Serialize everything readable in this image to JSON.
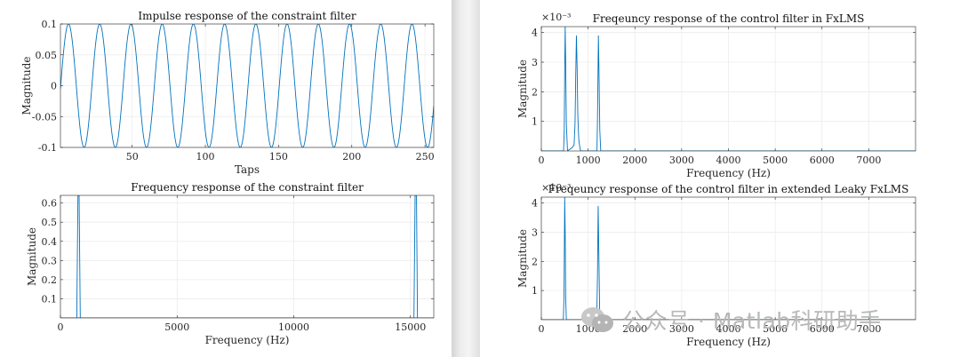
{
  "chart_data": [
    {
      "type": "line",
      "title": "Impulse response of the constraint filter",
      "xlabel": "Taps",
      "ylabel": "Magnitude",
      "xlim": [
        1,
        256
      ],
      "ylim": [
        -0.1,
        0.1
      ],
      "xticks": [
        50,
        100,
        150,
        200,
        250
      ],
      "yticks": [
        -0.1,
        -0.05,
        0,
        0.05,
        0.1
      ],
      "ytick_labels": [
        "-0.1",
        "-0.05",
        "0",
        "0.05",
        "0.1"
      ],
      "grid": true,
      "color": "#0072BD",
      "signal": {
        "form": "cosine",
        "amplitude": 0.1,
        "period_taps": 21.33,
        "phase_peak_tap": 6.5
      }
    },
    {
      "type": "line",
      "title": "Frequency response of the constraint filter",
      "xlabel": "Frequency (Hz)",
      "ylabel": "Magnitude",
      "xlim": [
        0,
        16000
      ],
      "ylim": [
        0,
        0.64
      ],
      "xticks": [
        0,
        5000,
        10000,
        15000
      ],
      "yticks": [
        0.1,
        0.2,
        0.3,
        0.4,
        0.5,
        0.6
      ],
      "grid": true,
      "color": "#0072BD",
      "series": [
        {
          "x": [
            0,
            700,
            750,
            800,
            850,
            16000
          ],
          "y": [
            0,
            0,
            0.64,
            0.64,
            0,
            0
          ]
        },
        {
          "x": [
            0,
            15150,
            15200,
            15260,
            15300,
            16000
          ],
          "y": [
            0,
            0,
            0.64,
            0.64,
            0,
            0
          ]
        }
      ]
    },
    {
      "type": "line",
      "title": "Freqeuncy response of the control filter in FxLMS",
      "xlabel": "Frequency (Hz)",
      "ylabel": "Magnitude",
      "xlim": [
        0,
        8000
      ],
      "ylim": [
        0,
        0.0042
      ],
      "exponent_label": "×10⁻³",
      "xticks": [
        0,
        1000,
        2000,
        3000,
        4000,
        5000,
        6000,
        7000
      ],
      "yticks": [
        0.001,
        0.002,
        0.003,
        0.004
      ],
      "ytick_labels": [
        "1",
        "2",
        "3",
        "4"
      ],
      "grid": true,
      "color": "#0072BD",
      "series": [
        {
          "x": [
            0,
            460,
            475,
            490,
            500,
            510,
            520,
            535,
            560,
            600,
            650,
            700,
            720,
            735,
            750,
            765,
            780,
            800,
            820,
            840,
            880,
            1000,
            1150,
            1190,
            1205,
            1220,
            1235,
            1250,
            1270,
            1300,
            8000
          ],
          "y": [
            0,
            0,
            0,
            0.0007,
            0.0028,
            0.0042,
            0.003,
            0.0009,
            0,
            5e-05,
            0.0001,
            0.0002,
            0.0009,
            0.0025,
            0.0039,
            0.0028,
            0.0012,
            0.0004,
            0.00015,
            0,
            0,
            0,
            0,
            0,
            0.0016,
            0.0039,
            0.0024,
            0.0007,
            0,
            0,
            0
          ]
        }
      ]
    },
    {
      "type": "line",
      "title": "Freqeuncy response of the control filter in extended Leaky FxLMS",
      "xlabel": "Frequency (Hz)",
      "ylabel": "Magnitude",
      "xlim": [
        0,
        8000
      ],
      "ylim": [
        0,
        0.0042
      ],
      "exponent_label": "×10⁻³",
      "xticks": [
        0,
        1000,
        2000,
        3000,
        4000,
        5000,
        6000,
        7000
      ],
      "yticks": [
        0.001,
        0.002,
        0.003,
        0.004
      ],
      "ytick_labels": [
        "1",
        "2",
        "3",
        "4"
      ],
      "grid": true,
      "color": "#0072BD",
      "series": [
        {
          "x": [
            0,
            470,
            485,
            500,
            510,
            520,
            535,
            560,
            1150,
            1185,
            1200,
            1215,
            1230,
            1250,
            8000
          ],
          "y": [
            0,
            0,
            0.0008,
            0.0042,
            0.003,
            0.0008,
            0,
            0,
            0,
            0,
            0.0015,
            0.0039,
            0.0022,
            0,
            0
          ]
        }
      ]
    }
  ],
  "watermark": {
    "text": "公众号 · Matlab科研助手",
    "icon": "wechat-icon"
  }
}
